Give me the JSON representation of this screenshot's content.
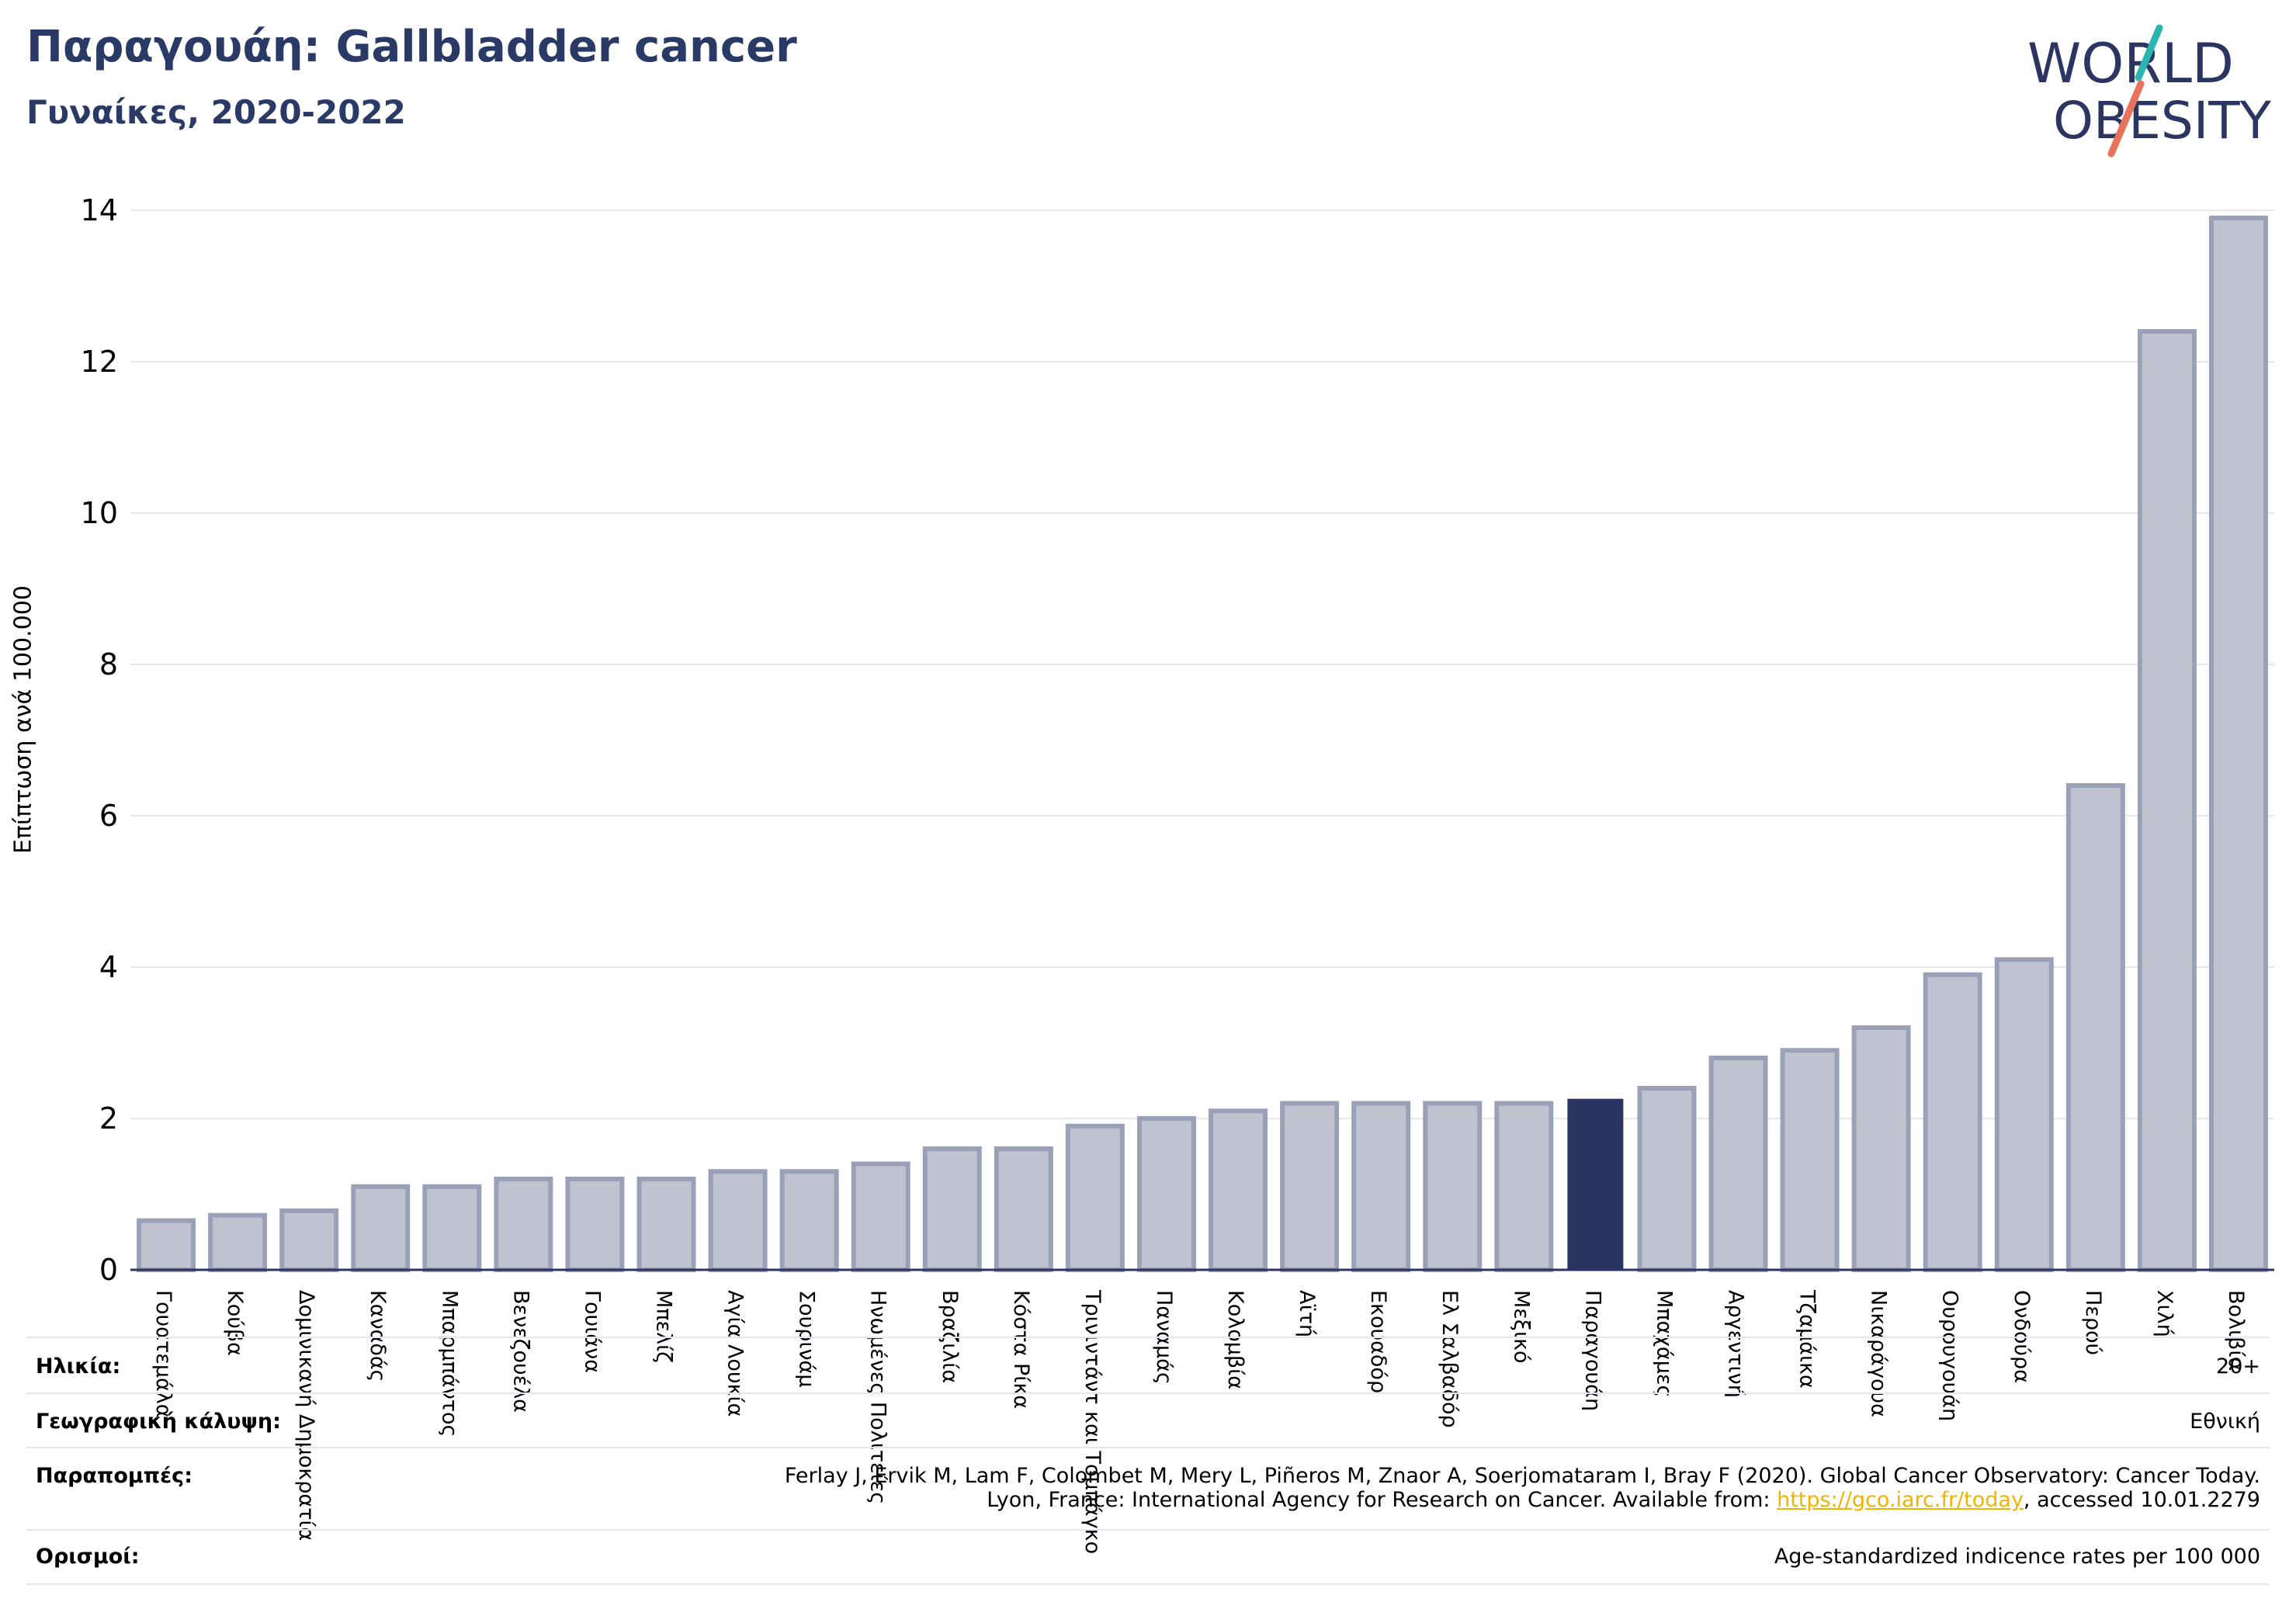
{
  "title": "Παραγουάη: Gallbladder cancer",
  "subtitle": "Γυναίκες, 2020-2022",
  "logo": {
    "line1": "WORLD",
    "line2": "OBESITY"
  },
  "colors": {
    "bar": "#bfc3d0",
    "bar_edge": "#9aa0b8",
    "highlight": "#2a3561",
    "title": "#2a3a66",
    "link": "#f0b400",
    "grid": "#e6e8ef"
  },
  "chart_data": {
    "type": "bar",
    "ylabel": "Επίπτωση ανά 100.000",
    "ylim": [
      0,
      14
    ],
    "yticks": [
      0,
      2,
      4,
      6,
      8,
      10,
      12,
      14
    ],
    "grid": true,
    "highlight": "Παραγουάη",
    "categories": [
      "Γουατεμάλα",
      "Κούβα",
      "Δομινικανή Δημοκρατία",
      "Καναδάς",
      "Μπαρμπάντος",
      "Βενεζουέλα",
      "Γουιάνα",
      "Μπελίζ",
      "Αγία Λουκία",
      "Σουρινάμ",
      "Ηνωμένες Πολιτείες",
      "Βραζιλία",
      "Κόστα Ρίκα",
      "Τρινιντάντ και Τομπάγκο",
      "Παναμάς",
      "Κολομβία",
      "Αϊτή",
      "Εκουαδόρ",
      "Ελ Σαλβαδόρ",
      "Μεξικό",
      "Παραγουάη",
      "Μπαχάμες",
      "Αργεντινή",
      "Τζαμάικα",
      "Νικαράγουα",
      "Ουρουγουάη",
      "Ονδούρα",
      "Περού",
      "Χιλή",
      "Βολιβία"
    ],
    "values": [
      0.65,
      0.72,
      0.78,
      1.1,
      1.1,
      1.2,
      1.2,
      1.2,
      1.3,
      1.3,
      1.4,
      1.6,
      1.6,
      1.9,
      2.0,
      2.1,
      2.2,
      2.2,
      2.2,
      2.2,
      2.25,
      2.4,
      2.8,
      2.9,
      3.2,
      3.9,
      4.1,
      6.4,
      12.4,
      13.9
    ]
  },
  "info": {
    "age": {
      "label": "Ηλικία:",
      "value": "20+"
    },
    "coverage": {
      "label": "Γεωγραφική κάλυψη:",
      "value": "Εθνική"
    },
    "references": {
      "label": "Παραπομπές:",
      "line1": "Ferlay J, Ervik M, Lam F, Colombet M, Mery L, Piñeros M, Znaor A, Soerjomataram I, Bray F (2020). Global Cancer Observatory: Cancer Today.",
      "line2_pre": "Lyon, France: International Agency for Research on Cancer. Available from: ",
      "link": "https://gco.iarc.fr/today",
      "line2_post": ", accessed 10.01.2279"
    },
    "definitions": {
      "label": "Ορισμοί:",
      "value": "Age-standardized indicence rates per 100 000"
    }
  }
}
